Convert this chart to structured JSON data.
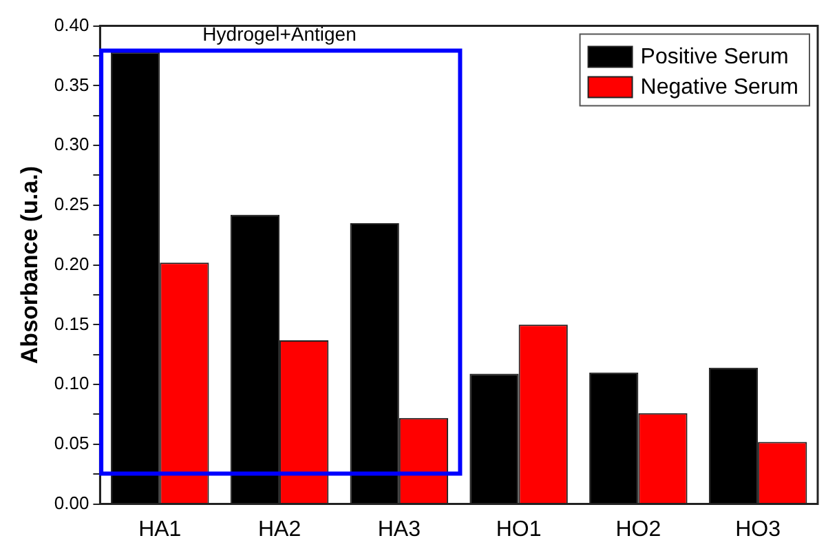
{
  "chart_data": {
    "type": "bar",
    "ylabel": "Absorbance (u.a.)",
    "categories": [
      "HA1",
      "HA2",
      "HA3",
      "HO1",
      "HO2",
      "HO3"
    ],
    "series": [
      {
        "name": "Positive Serum",
        "color": "#000000",
        "values": [
          0.378,
          0.242,
          0.235,
          0.109,
          0.11,
          0.114
        ]
      },
      {
        "name": "Negative Serum",
        "color": "#ff0000",
        "values": [
          0.202,
          0.137,
          0.072,
          0.15,
          0.076,
          0.052
        ]
      }
    ],
    "ylim": [
      0,
      0.4
    ],
    "yticks": [
      {
        "value": 0,
        "label": "0.00"
      },
      {
        "value": 0.025,
        "label": null
      },
      {
        "value": 0.05,
        "label": "0.05"
      },
      {
        "value": 0.075,
        "label": null
      },
      {
        "value": 0.1,
        "label": "0.10"
      },
      {
        "value": 0.125,
        "label": null
      },
      {
        "value": 0.15,
        "label": "0.15"
      },
      {
        "value": 0.175,
        "label": null
      },
      {
        "value": 0.2,
        "label": "0.20"
      },
      {
        "value": 0.225,
        "label": null
      },
      {
        "value": 0.25,
        "label": "0.25"
      },
      {
        "value": 0.275,
        "label": null
      },
      {
        "value": 0.3,
        "label": "0.30"
      },
      {
        "value": 0.325,
        "label": null
      },
      {
        "value": 0.35,
        "label": "0.35"
      },
      {
        "value": 0.375,
        "label": null
      },
      {
        "value": 0.4,
        "label": "0.40"
      }
    ],
    "annotations": [
      "Hydrogel+Antigen"
    ],
    "grid": false,
    "legend": "top right"
  }
}
